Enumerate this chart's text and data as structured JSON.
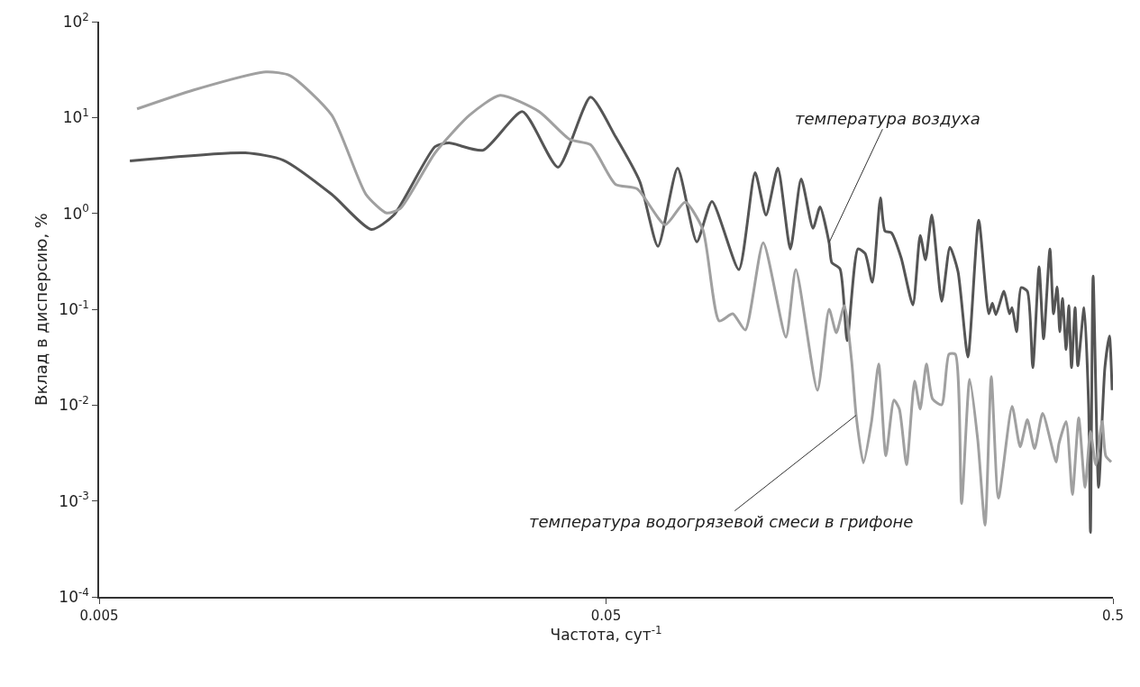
{
  "chart_data": {
    "type": "line",
    "xlabel": "Частота, сут$^{-1}$",
    "ylabel": "Вклад в дисперсию, %",
    "log": "xy",
    "marker": "none",
    "line_style": "solid",
    "xlim": [
      0.005,
      0.5
    ],
    "xticks": [
      0.005,
      0.05,
      0.5
    ],
    "ylim": [
      0.0001,
      100
    ],
    "yticks": [
      {
        "value": 0.0001,
        "label": "10$^{-4}$"
      },
      {
        "value": 0.001,
        "label": "10$^{-3}$"
      },
      {
        "value": 0.01,
        "label": "10$^{-2}$"
      },
      {
        "value": 0.1,
        "label": "10$^{-1}$"
      },
      {
        "value": 1,
        "label": "10$^{0}$"
      },
      {
        "value": 10,
        "label": "10$^{1}$"
      },
      {
        "value": 100,
        "label": "10$^{2}$"
      }
    ],
    "series": [
      {
        "color": "#555555",
        "x": [
          0.00575,
          0.00971,
          0.01153,
          0.01438,
          0.01722,
          0.01907,
          0.023,
          0.0245,
          0.0286,
          0.0342,
          0.0402,
          0.0466,
          0.0522,
          0.0583,
          0.0633,
          0.0692,
          0.0755,
          0.0809,
          0.0914,
          0.0984,
          0.1034,
          0.1091,
          0.1155,
          0.1213,
          0.128,
          0.1322,
          0.1377,
          0.1394,
          0.1447,
          0.1495,
          0.157,
          0.1622,
          0.1676,
          0.1739,
          0.1775,
          0.1827,
          0.1911,
          0.2015,
          0.2083,
          0.2134,
          0.2196,
          0.2297,
          0.2384,
          0.2473,
          0.2587,
          0.2717,
          0.2844,
          0.2891,
          0.2938,
          0.3048,
          0.3124,
          0.3162,
          0.3228,
          0.3294,
          0.3389,
          0.3474,
          0.3574,
          0.3648,
          0.3755,
          0.3817,
          0.388,
          0.3927,
          0.3975,
          0.4042,
          0.4091,
          0.4142,
          0.421,
          0.4263,
          0.4386,
          0.4477,
          0.4514,
          0.4569,
          0.4684,
          0.482,
          0.492,
          0.4981
        ],
        "values": [
          3.52,
          4.28,
          3.6,
          1.58,
          0.68,
          0.96,
          4.97,
          5.42,
          4.56,
          11.5,
          3.03,
          16.3,
          6.31,
          2.14,
          0.453,
          2.96,
          0.505,
          1.33,
          0.259,
          2.66,
          0.96,
          2.96,
          0.425,
          2.29,
          0.7,
          1.17,
          0.494,
          0.307,
          0.264,
          0.047,
          0.425,
          0.381,
          0.191,
          1.45,
          0.654,
          0.627,
          0.342,
          0.111,
          0.587,
          0.328,
          0.96,
          0.121,
          0.444,
          0.248,
          0.0318,
          0.848,
          0.0897,
          0.116,
          0.088,
          0.154,
          0.0897,
          0.104,
          0.0583,
          0.168,
          0.154,
          0.0246,
          0.276,
          0.0491,
          0.425,
          0.0897,
          0.171,
          0.0583,
          0.13,
          0.0379,
          0.109,
          0.0246,
          0.104,
          0.0257,
          0.104,
          0.0097,
          0.00047,
          0.222,
          0.00139,
          0.0246,
          0.0524,
          0.0143
        ]
      },
      {
        "color": "#a0a0a0",
        "x": [
          0.00594,
          0.00769,
          0.01066,
          0.0119,
          0.01438,
          0.0168,
          0.01845,
          0.01963,
          0.023,
          0.0269,
          0.0309,
          0.0369,
          0.0424,
          0.0466,
          0.0522,
          0.0576,
          0.0654,
          0.0716,
          0.0776,
          0.0836,
          0.0889,
          0.0941,
          0.1021,
          0.1132,
          0.1184,
          0.1306,
          0.1377,
          0.1423,
          0.1476,
          0.1526,
          0.1557,
          0.1609,
          0.167,
          0.1725,
          0.1782,
          0.1849,
          0.1895,
          0.1958,
          0.2031,
          0.2083,
          0.2143,
          0.2204,
          0.2297,
          0.2374,
          0.2443,
          0.2514,
          0.2608,
          0.2705,
          0.2797,
          0.2877,
          0.2972,
          0.3162,
          0.328,
          0.3389,
          0.3502,
          0.3633,
          0.3864,
          0.3911,
          0.4042,
          0.4159,
          0.428,
          0.4405,
          0.4514,
          0.4625,
          0.4761,
          0.4839,
          0.496
        ],
        "values": [
          12.3,
          19.4,
          29.9,
          27.4,
          10.6,
          1.58,
          1.01,
          1.12,
          4.28,
          10.6,
          17.0,
          11.5,
          5.91,
          5.2,
          2.01,
          1.8,
          0.76,
          1.31,
          0.68,
          0.0755,
          0.0897,
          0.0608,
          0.494,
          0.0512,
          0.259,
          0.0143,
          0.1,
          0.057,
          0.109,
          0.0286,
          0.00783,
          0.0025,
          0.00673,
          0.0268,
          0.00296,
          0.0113,
          0.0091,
          0.00239,
          0.0178,
          0.0091,
          0.0268,
          0.01155,
          0.0101,
          0.034,
          0.034,
          0.00094,
          0.0186,
          0.00438,
          0.00056,
          0.0198,
          0.00107,
          0.0097,
          0.00368,
          0.00703,
          0.00352,
          0.00818,
          0.00255,
          0.00393,
          0.00673,
          0.00117,
          0.00734,
          0.00139,
          0.00531,
          0.00239,
          0.00673,
          0.00296,
          0.00255
        ]
      }
    ],
    "annotations": [
      {
        "text": "температура воздуха",
        "x": 0.1377,
        "y": 0.494
      },
      {
        "text": "температура водогрязевой смеси в грифоне",
        "x": 0.1557,
        "y": 0.00783
      }
    ]
  }
}
